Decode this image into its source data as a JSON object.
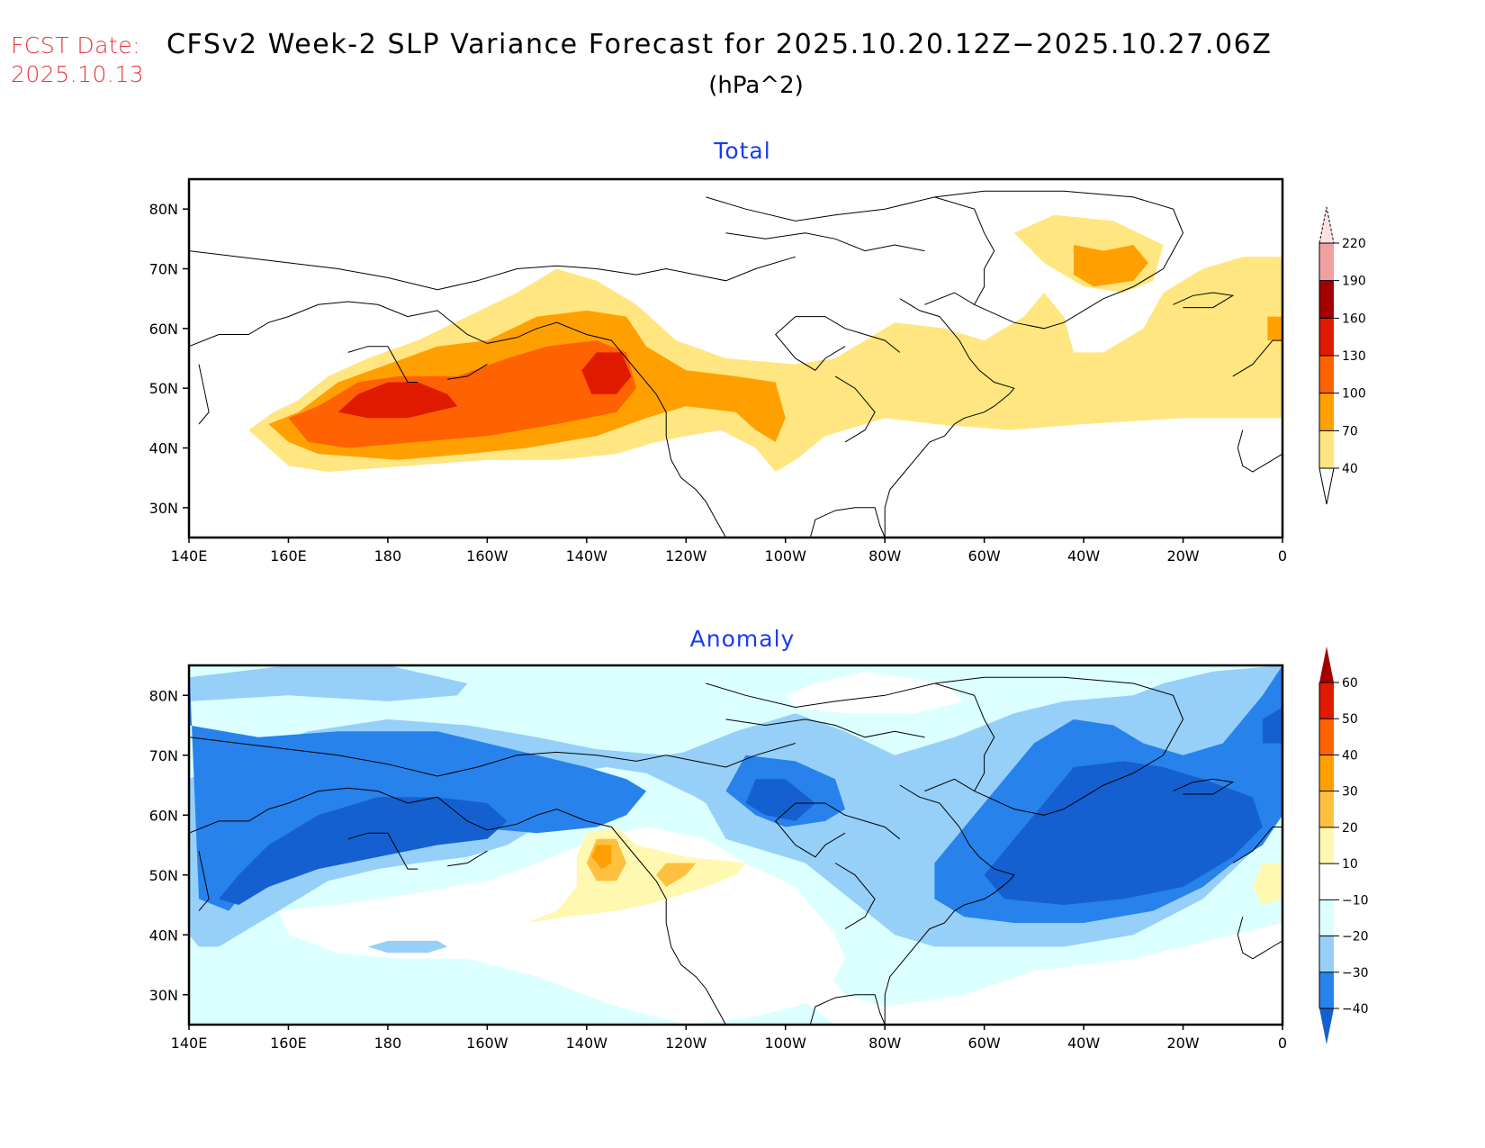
{
  "header": {
    "fcst_label": "FCST Date:",
    "fcst_date": "2025.10.13",
    "title": "CFSv2 Week-2 SLP Variance Forecast for 2025.10.20.12Z−2025.10.27.06Z",
    "units": "(hPa^2)"
  },
  "chart_data": [
    {
      "type": "heatmap",
      "title": "Total",
      "units": "hPa^2",
      "domain": {
        "lon_range": [
          140,
          360
        ],
        "lat_range": [
          25,
          85
        ]
      },
      "x_ticks": [
        "140E",
        "160E",
        "180",
        "160W",
        "140W",
        "120W",
        "100W",
        "80W",
        "60W",
        "40W",
        "20W",
        "0"
      ],
      "x_tick_lons": [
        140,
        160,
        180,
        200,
        220,
        240,
        260,
        280,
        300,
        320,
        340,
        360
      ],
      "y_ticks": [
        "30N",
        "40N",
        "50N",
        "60N",
        "70N",
        "80N"
      ],
      "y_tick_lats": [
        30,
        40,
        50,
        60,
        70,
        80
      ],
      "colorbar": {
        "levels": [
          40,
          70,
          100,
          130,
          160,
          190,
          220
        ],
        "labels": [
          "40",
          "70",
          "100",
          "130",
          "160",
          "190",
          "220"
        ],
        "colors": [
          "#ffe680",
          "#ffa000",
          "#ff6200",
          "#e01a00",
          "#a50000",
          "#f0a0a0",
          "#ffe0e0"
        ],
        "extend": "both"
      },
      "features": [
        {
          "name": "North Pacific variance maximum",
          "value_range": [
            130,
            160
          ],
          "center": [
            185,
            47
          ]
        },
        {
          "name": "Gulf of Alaska variance maximum",
          "value_range": [
            130,
            170
          ],
          "center": [
            222,
            53
          ]
        },
        {
          "name": "Greenland maximum",
          "value_range": [
            70,
            100
          ],
          "center": [
            320,
            74
          ]
        },
        {
          "name": "North Atlantic variance band",
          "value_range": [
            40,
            70
          ],
          "center": [
            300,
            52
          ]
        },
        {
          "name": "Eastern Atlantic near 0E",
          "value_range": [
            70,
            100
          ],
          "center": [
            358,
            62
          ]
        }
      ]
    },
    {
      "type": "heatmap",
      "title": "Anomaly",
      "units": "hPa^2",
      "domain": {
        "lon_range": [
          140,
          360
        ],
        "lat_range": [
          25,
          85
        ]
      },
      "x_ticks": [
        "140E",
        "160E",
        "180",
        "160W",
        "140W",
        "120W",
        "100W",
        "80W",
        "60W",
        "40W",
        "20W",
        "0"
      ],
      "x_tick_lons": [
        140,
        160,
        180,
        200,
        220,
        240,
        260,
        280,
        300,
        320,
        340,
        360
      ],
      "y_ticks": [
        "30N",
        "40N",
        "50N",
        "60N",
        "70N",
        "80N"
      ],
      "y_tick_lats": [
        30,
        40,
        50,
        60,
        70,
        80
      ],
      "colorbar": {
        "levels": [
          -40,
          -30,
          -20,
          -10,
          10,
          20,
          30,
          40,
          50,
          60
        ],
        "labels": [
          "−40",
          "−30",
          "−20",
          "−10",
          "10",
          "20",
          "30",
          "40",
          "50",
          "60"
        ],
        "colors": [
          "#1560d0",
          "#2882ec",
          "#96d0f8",
          "#dcffff",
          "#ffffff",
          "#fff8b0",
          "#ffc040",
          "#ffa000",
          "#ff6200",
          "#e01a00",
          "#a50000"
        ],
        "extend": "both"
      },
      "features": [
        {
          "name": "Bering Sea / North Pacific negative anomaly",
          "value_range": [
            -50,
            -40
          ],
          "center": [
            180,
            57
          ]
        },
        {
          "name": "Hudson Bay negative anomaly",
          "value_range": [
            -40,
            -30
          ],
          "center": [
            255,
            62
          ]
        },
        {
          "name": "North Atlantic / Greenland negative anomaly",
          "value_range": [
            -50,
            -40
          ],
          "center": [
            320,
            57
          ]
        },
        {
          "name": "British Columbia positive anomaly",
          "value_range": [
            30,
            40
          ],
          "center": [
            226,
            54
          ]
        },
        {
          "name": "Pacific Northwest positive anomaly",
          "value_range": [
            20,
            30
          ],
          "center": [
            240,
            51
          ]
        },
        {
          "name": "Western Europe positive anomaly",
          "value_range": [
            10,
            20
          ],
          "center": [
            358,
            49
          ]
        }
      ]
    }
  ]
}
